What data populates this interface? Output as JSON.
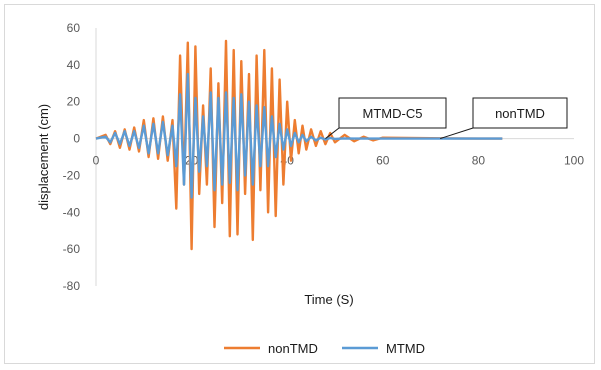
{
  "chart_data": {
    "type": "line",
    "title": "",
    "xlabel": "Time (S)",
    "ylabel": "displacement (cm)",
    "xlim": [
      0,
      100
    ],
    "ylim": [
      -80,
      60
    ],
    "x_ticks": [
      "0",
      "20",
      "40",
      "60",
      "80",
      "100"
    ],
    "y_ticks": [
      "60",
      "40",
      "20",
      "0",
      "-20",
      "-40",
      "-60",
      "-80"
    ],
    "grid": false,
    "legend_position": "bottom",
    "series": [
      {
        "name": "nonTMD",
        "color": "#ed7d31",
        "x": [
          0,
          2,
          3,
          4,
          5,
          6,
          7,
          8,
          9,
          10,
          11,
          12,
          13,
          14,
          15,
          16,
          16.8,
          17.6,
          18.4,
          19.2,
          20,
          20.8,
          21.6,
          22.4,
          23.2,
          24,
          24.8,
          25.6,
          26.4,
          27.2,
          28,
          28.8,
          29.6,
          30.4,
          31.2,
          32,
          32.8,
          33.6,
          34.4,
          35.2,
          36,
          36.8,
          37.6,
          38.4,
          39.2,
          40,
          40.8,
          41.6,
          42.4,
          43.2,
          44,
          45,
          46,
          47,
          48,
          49,
          50,
          52,
          54,
          56,
          58,
          60,
          65,
          70,
          75,
          80,
          85
        ],
        "values": [
          0,
          2,
          -3,
          4,
          -5,
          5,
          -6,
          6,
          -7,
          10,
          -10,
          11,
          -11,
          12,
          -12,
          10,
          -38,
          45,
          -25,
          52,
          -60,
          50,
          -30,
          18,
          -25,
          38,
          -48,
          30,
          -35,
          53,
          -53,
          48,
          -52,
          42,
          -30,
          35,
          -55,
          45,
          -28,
          48,
          -40,
          38,
          -42,
          32,
          -25,
          20,
          -12,
          10,
          -8,
          7,
          -6,
          5,
          -4,
          4,
          -3,
          3,
          -2,
          2,
          -1.5,
          1,
          -1,
          0.5,
          0.3,
          0.2,
          0.1,
          0,
          0
        ]
      },
      {
        "name": "MTMD",
        "color": "#5b9bd5",
        "x": [
          0,
          2,
          3,
          4,
          5,
          6,
          7,
          8,
          9,
          10,
          11,
          12,
          13,
          14,
          15,
          16,
          16.8,
          17.6,
          18.4,
          19.2,
          20,
          20.8,
          21.6,
          22.4,
          23.2,
          24,
          24.8,
          25.6,
          26.4,
          27.2,
          28,
          28.8,
          29.6,
          30.4,
          31.2,
          32,
          32.8,
          33.6,
          34.4,
          35.2,
          36,
          36.8,
          37.6,
          38.4,
          39.2,
          40,
          40.8,
          41.6,
          42.4,
          43.2,
          44,
          45,
          46,
          47,
          48,
          49,
          50,
          52,
          54,
          56,
          58,
          60,
          65,
          70,
          75,
          80,
          85
        ],
        "values": [
          0,
          1,
          -2,
          3,
          -3,
          4,
          -4,
          4,
          -5,
          7,
          -8,
          8,
          -8,
          9,
          -9,
          7,
          -15,
          24,
          -25,
          35,
          -32,
          22,
          -18,
          12,
          -15,
          25,
          -28,
          22,
          -25,
          25,
          -24,
          22,
          -28,
          24,
          -20,
          20,
          -25,
          18,
          -15,
          17,
          -15,
          12,
          -10,
          8,
          -6,
          5,
          -4,
          3,
          -2,
          2,
          -1.5,
          1,
          -1,
          0.5,
          -0.5,
          0.3,
          -0.2,
          0.1,
          0,
          0,
          0,
          0,
          0,
          0,
          0,
          0,
          0
        ]
      }
    ],
    "annotations": [
      {
        "text": "MTMD-C5",
        "points_to": {
          "x": 48,
          "y": 0
        }
      },
      {
        "text": "nonTMD",
        "points_to": {
          "x": 72,
          "y": 0
        }
      }
    ]
  }
}
